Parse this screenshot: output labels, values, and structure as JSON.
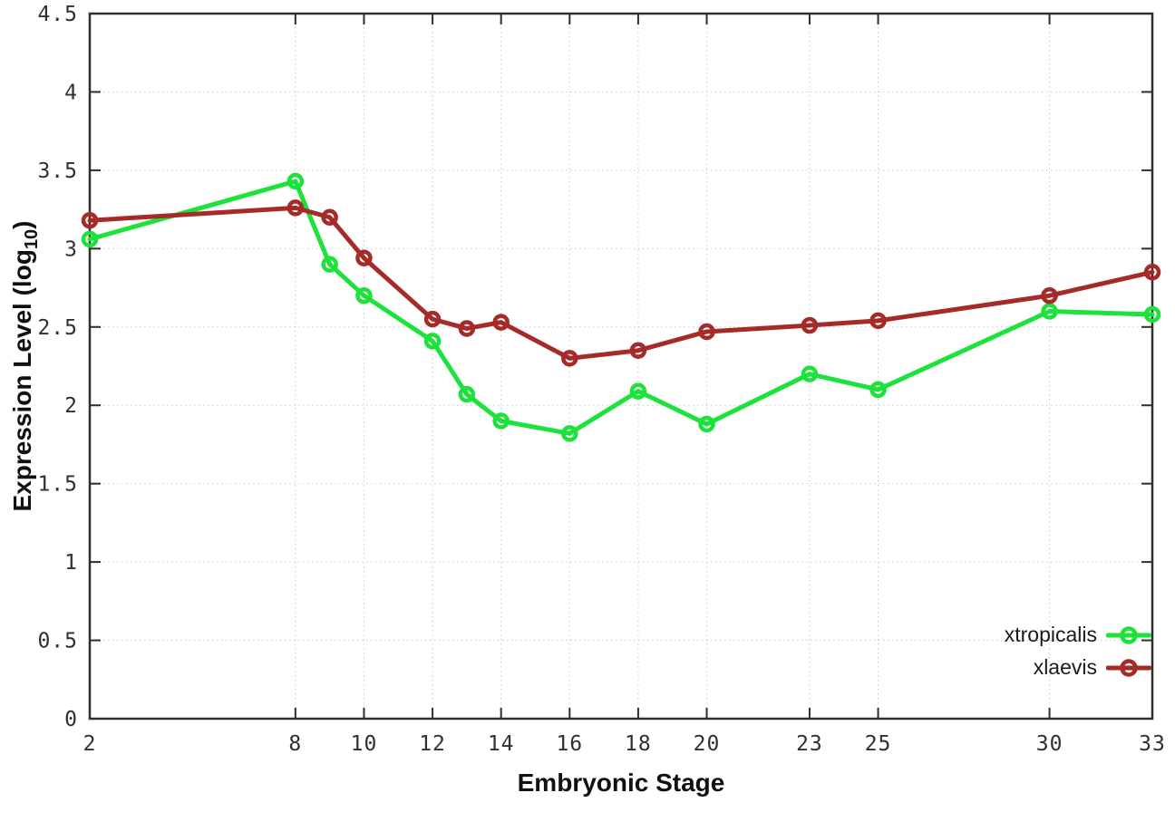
{
  "chart_data": {
    "type": "line",
    "xlabel": "Embryonic Stage",
    "ylabel": "Expression Level (log10)",
    "ylabel_parts": {
      "prefix": "Expression Level (log",
      "sub": "10",
      "suffix": ")"
    },
    "xlim": [
      2,
      33
    ],
    "ylim": [
      0,
      4.5
    ],
    "grid": true,
    "legend_position": "bottom-right",
    "x": [
      2,
      8,
      9,
      10,
      12,
      13,
      14,
      16,
      18,
      20,
      23,
      25,
      30,
      33
    ],
    "x_tick_values": [
      2,
      8,
      10,
      12,
      14,
      16,
      18,
      20,
      23,
      25,
      30,
      33
    ],
    "x_tick_labels": [
      "2",
      "8",
      "10",
      "12",
      "14",
      "16",
      "18",
      "20",
      "23",
      "25",
      "30",
      "33"
    ],
    "y_tick_values": [
      0,
      0.5,
      1,
      1.5,
      2,
      2.5,
      3,
      3.5,
      4,
      4.5
    ],
    "y_tick_labels": [
      "0",
      "0.5",
      "1",
      "1.5",
      "2",
      "2.5",
      "3",
      "3.5",
      "4",
      "4.5"
    ],
    "series": [
      {
        "name": "xtropicalis",
        "color": "#1de23c",
        "marker": "open-circle",
        "values": [
          3.06,
          3.43,
          2.9,
          2.7,
          2.41,
          2.07,
          1.9,
          1.82,
          2.09,
          1.88,
          2.2,
          2.1,
          2.6,
          2.58
        ]
      },
      {
        "name": "xlaevis",
        "color": "#a52b28",
        "marker": "open-circle",
        "values": [
          3.18,
          3.26,
          3.2,
          2.94,
          2.55,
          2.49,
          2.53,
          2.3,
          2.35,
          2.47,
          2.51,
          2.54,
          2.7,
          2.85
        ]
      }
    ]
  }
}
